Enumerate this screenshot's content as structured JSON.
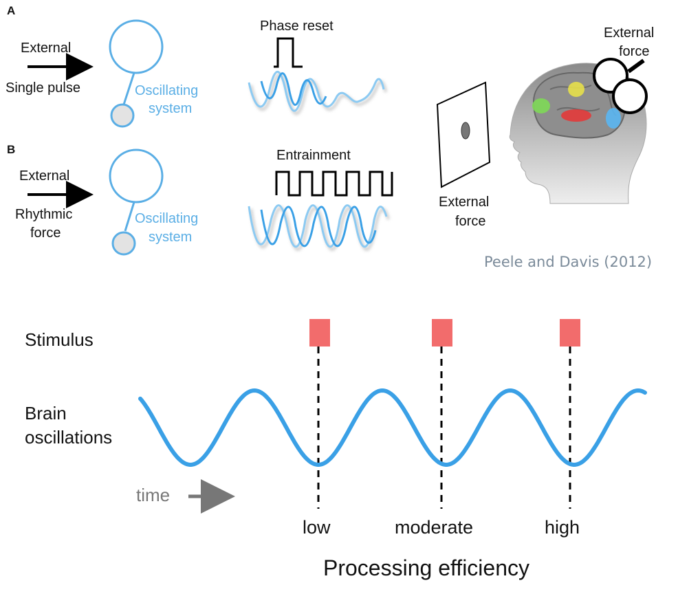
{
  "panel_a": {
    "letter": "A",
    "external": "External",
    "input": "Single pulse",
    "system_line1": "Oscillating",
    "system_line2": "system",
    "signal_label": "Phase reset"
  },
  "panel_b": {
    "letter": "B",
    "external": "External",
    "input_line1": "Rhythmic",
    "input_line2": "force",
    "system_line1": "Oscillating",
    "system_line2": "system",
    "signal_label": "Entrainment"
  },
  "brain_figure": {
    "force_top_line1": "External",
    "force_top_line2": "force",
    "force_side_line1": "External",
    "force_side_line2": "force"
  },
  "citation": "Peele and Davis (2012)",
  "timeline": {
    "stimulus": "Stimulus",
    "brain_line1": "Brain",
    "brain_line2": "oscillations",
    "time": "time",
    "levels": [
      "low",
      "moderate",
      "high"
    ],
    "axis_title": "Processing efficiency"
  },
  "colors": {
    "oscillation_blue": "#3aa0e6",
    "stimulus_red": "#f26c6c",
    "label_blue": "#5aaee5"
  }
}
